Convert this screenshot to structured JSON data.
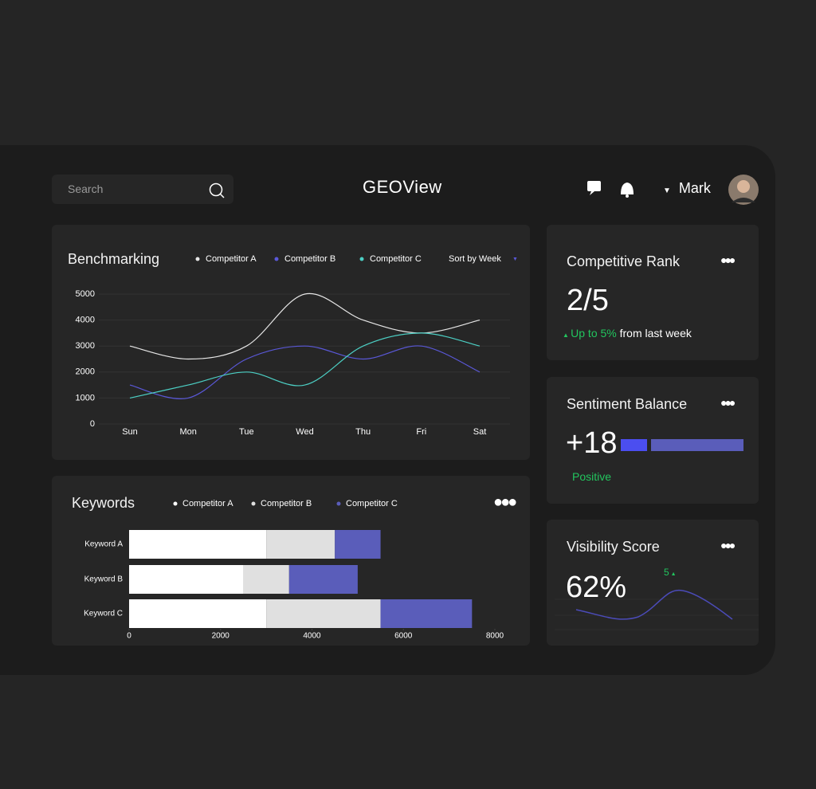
{
  "header": {
    "search_placeholder": "Search",
    "title": "GEOView",
    "user": "Mark"
  },
  "chart_data": [
    {
      "type": "line",
      "title": "Benchmarking",
      "sort_label": "Sort by Week",
      "categories": [
        "Sun",
        "Mon",
        "Tue",
        "Wed",
        "Thu",
        "Fri",
        "Sat"
      ],
      "series": [
        {
          "name": "Competitor A",
          "color": "#e6e6e6",
          "values": [
            3000,
            2500,
            3000,
            5000,
            4000,
            3500,
            4000
          ]
        },
        {
          "name": "Competitor B",
          "color": "#5a58d8",
          "values": [
            1500,
            1000,
            2500,
            3000,
            2500,
            3000,
            2000
          ]
        },
        {
          "name": "Competitor C",
          "color": "#4ccfc4",
          "values": [
            1000,
            1500,
            2000,
            1500,
            3000,
            3500,
            3000
          ]
        }
      ],
      "ylim": [
        0,
        5000
      ],
      "yticks": [
        0,
        1000,
        2000,
        3000,
        4000,
        5000
      ],
      "grid": true
    },
    {
      "type": "bar",
      "orientation": "horizontal",
      "stacked": true,
      "title": "Keywords",
      "categories": [
        "Keyword A",
        "Keyword B",
        "Keyword C"
      ],
      "series": [
        {
          "name": "Competitor A",
          "color": "#ffffff",
          "values": [
            3000,
            2500,
            3000
          ]
        },
        {
          "name": "Competitor B",
          "color": "#e0e0e0",
          "values": [
            1500,
            1000,
            2500
          ]
        },
        {
          "name": "Competitor C",
          "color": "#5a5dba",
          "values": [
            1000,
            1500,
            2000
          ]
        }
      ],
      "xlim": [
        0,
        8000
      ],
      "xticks": [
        0,
        2000,
        4000,
        6000,
        8000
      ]
    }
  ],
  "cards": [
    {
      "title": "Competitive Rank",
      "value": "2/5",
      "change": "Up to 5%",
      "change_note": "from last week"
    },
    {
      "title": "Sentiment Balance",
      "value": "+18",
      "label": "Positive"
    },
    {
      "title": "Visibility Score",
      "value": "62%",
      "change": "5"
    }
  ]
}
